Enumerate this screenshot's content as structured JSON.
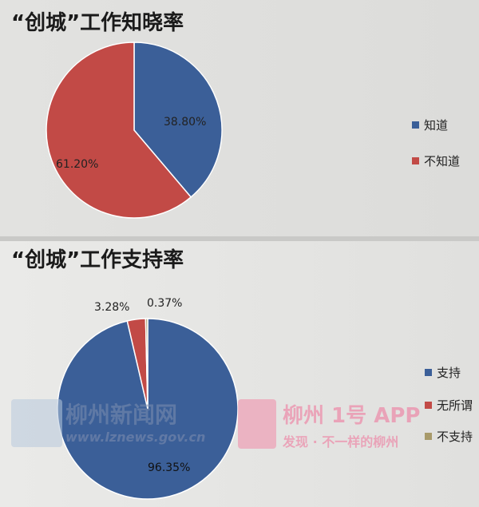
{
  "chart_data": [
    {
      "type": "pie",
      "title": "“创城”工作知晓率",
      "slices": [
        {
          "name": "知道",
          "value": 38.8,
          "label": "38.80%",
          "color": "#3b5f98"
        },
        {
          "name": "不知道",
          "value": 61.2,
          "label": "61.20%",
          "color": "#c24a46"
        }
      ],
      "legend": "right"
    },
    {
      "type": "pie",
      "title": "“创城”工作支持率",
      "slices": [
        {
          "name": "支持",
          "value": 96.35,
          "label": "96.35%",
          "color": "#3b5f98"
        },
        {
          "name": "无所谓",
          "value": 3.28,
          "label": "3.28%",
          "color": "#c24a46"
        },
        {
          "name": "不支持",
          "value": 0.37,
          "label": "0.37%",
          "color": "#a89a6a"
        }
      ],
      "legend": "right"
    }
  ],
  "watermarks": {
    "left_cn": "柳州新闻网",
    "left_url": "www.lznews.gov.cn",
    "right_cn": "柳州 1号 APP",
    "right_slogan": "发现 · 不一样的柳州"
  }
}
